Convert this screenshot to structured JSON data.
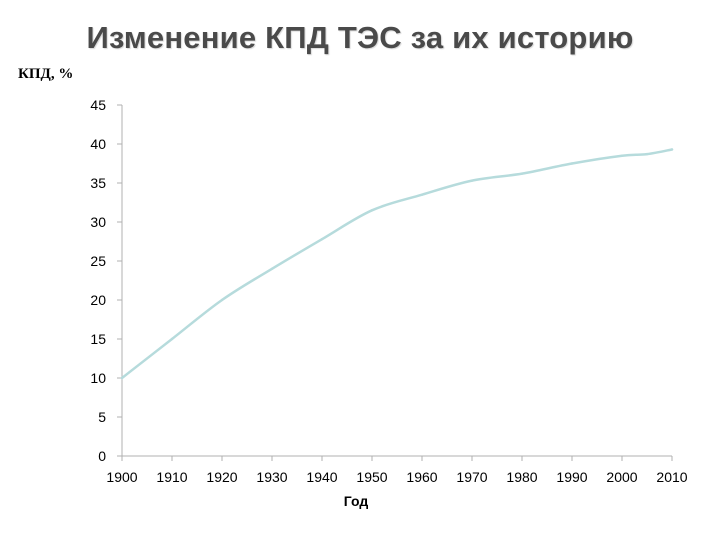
{
  "chart_data": {
    "type": "line",
    "title": "Изменение КПД ТЭС за их историю",
    "xlabel": "Год",
    "ylabel": "КПД, %",
    "xlim": [
      1900,
      2010
    ],
    "ylim": [
      0,
      45
    ],
    "xticks": [
      1900,
      1910,
      1920,
      1930,
      1940,
      1950,
      1960,
      1970,
      1980,
      1990,
      2000,
      2010
    ],
    "yticks": [
      0,
      5,
      10,
      15,
      20,
      25,
      30,
      35,
      40,
      45
    ],
    "grid": false,
    "legend": "none",
    "series": [
      {
        "color": "#b6dbdc",
        "x": [
          1900,
          1910,
          1920,
          1930,
          1940,
          1950,
          1960,
          1970,
          1980,
          1990,
          2000,
          2005,
          2010
        ],
        "y": [
          10,
          15,
          20,
          24,
          27.8,
          31.5,
          33.5,
          35.3,
          36.2,
          37.5,
          38.5,
          38.7,
          39.3
        ]
      }
    ]
  }
}
